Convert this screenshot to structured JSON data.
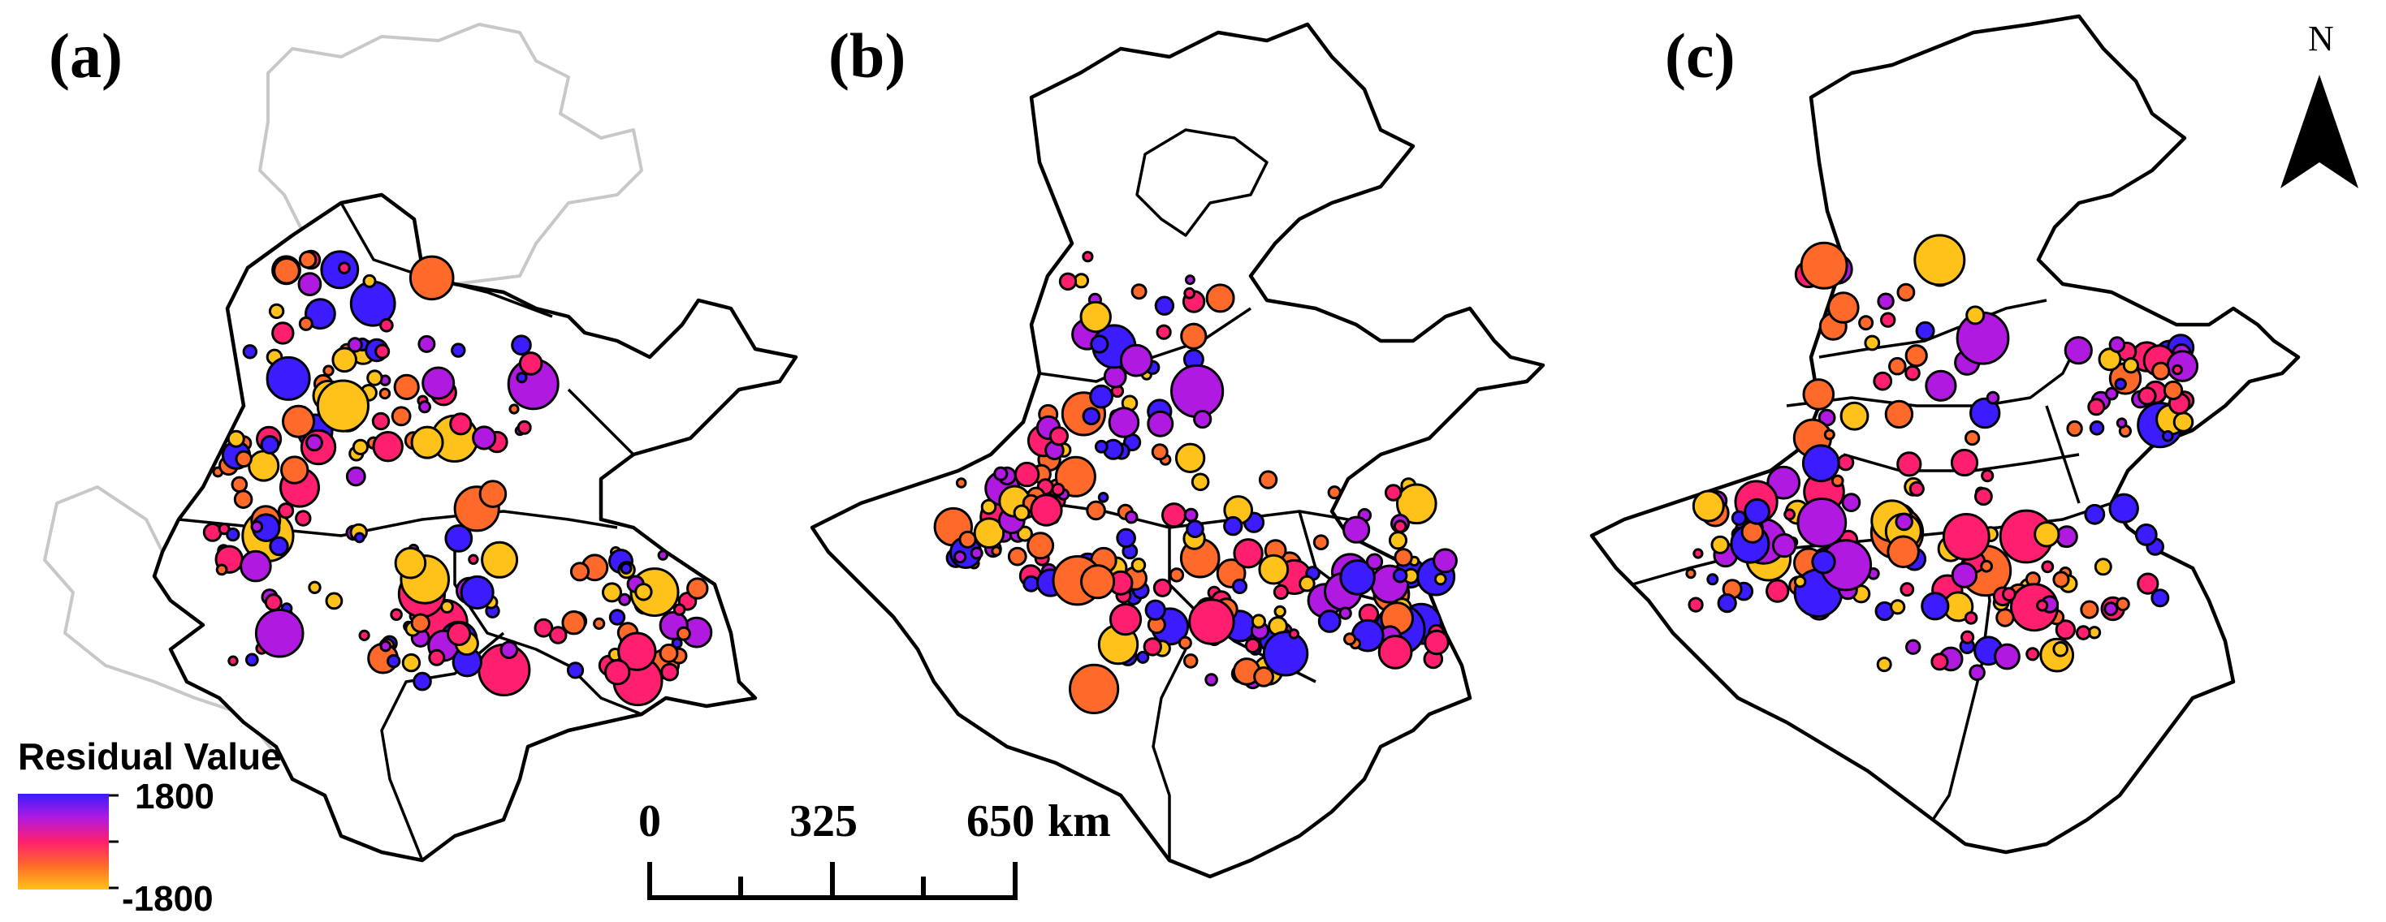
{
  "panels": [
    {
      "label": "(a)"
    },
    {
      "label": "(b)"
    },
    {
      "label": "(c)"
    }
  ],
  "legend": {
    "title": "Residual Value",
    "max_label": "1800",
    "min_label": "-1800",
    "colors": [
      "#3a1cff",
      "#b01ae0",
      "#ff1f6e",
      "#ff6a2a",
      "#ffc21a"
    ]
  },
  "scale_bar": {
    "tick_0": "0",
    "tick_mid": "325",
    "tick_end": "650",
    "unit": "km"
  },
  "north_arrow": {
    "label": "N"
  }
}
